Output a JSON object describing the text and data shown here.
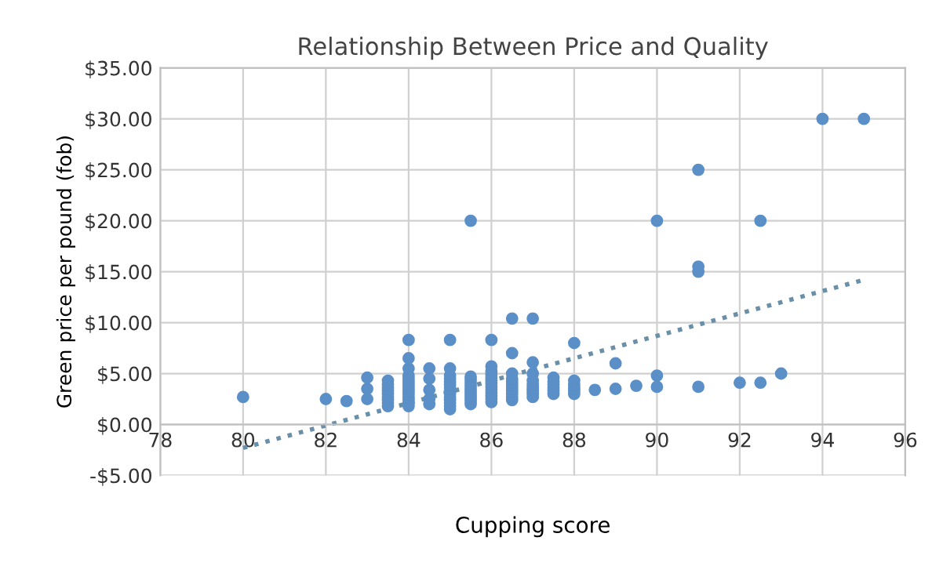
{
  "chart_data": {
    "type": "scatter",
    "title": "Relationship Between Price and Quality",
    "xlabel": "Cupping score",
    "ylabel": "Green price per pound (fob)",
    "series": [
      {
        "color": "#5b8fc7",
        "marker": "circle",
        "x": [
          80,
          82,
          82.5,
          83,
          83,
          83,
          83.5,
          83.5,
          83.5,
          83.5,
          83.5,
          83.5,
          83.5,
          83.5,
          83.5,
          84,
          84,
          84,
          84,
          84,
          84,
          84,
          84,
          84,
          84,
          84,
          84,
          84,
          84,
          84.5,
          84.5,
          84.5,
          84.5,
          84.5,
          85,
          85,
          85,
          85,
          85,
          85,
          85,
          85,
          85,
          85,
          85,
          85,
          85,
          85,
          85.5,
          85.5,
          85.5,
          85.5,
          85.5,
          85.5,
          85.5,
          85.5,
          85.5,
          85.5,
          85.5,
          86,
          86,
          86,
          86,
          86,
          86,
          86,
          86,
          86,
          86,
          86,
          86,
          86,
          86.5,
          86.5,
          86.5,
          86.5,
          86.5,
          86.5,
          86.5,
          86.5,
          86.5,
          86.5,
          86.5,
          87,
          87,
          87,
          87,
          87,
          87,
          87,
          87,
          87,
          87.5,
          87.5,
          87.5,
          87.5,
          87.5,
          87.5,
          88,
          88,
          88,
          88,
          88,
          88,
          88.5,
          89,
          89,
          89.5,
          90,
          90,
          90,
          91,
          91,
          91,
          91,
          92,
          92.5,
          92.5,
          93,
          94,
          95
        ],
        "values": [
          2.7,
          2.5,
          2.3,
          2.5,
          3.5,
          4.6,
          1.8,
          2.1,
          2.4,
          2.7,
          3.0,
          3.3,
          3.6,
          3.9,
          4.3,
          1.8,
          2.1,
          2.4,
          2.7,
          3.0,
          3.3,
          3.6,
          3.9,
          4.2,
          4.5,
          4.8,
          5.5,
          6.5,
          8.3,
          2.0,
          2.5,
          3.4,
          4.5,
          5.5,
          1.5,
          1.8,
          2.1,
          2.4,
          2.7,
          3.0,
          3.3,
          3.6,
          3.9,
          4.2,
          4.5,
          4.8,
          5.5,
          8.3,
          2.0,
          2.3,
          2.6,
          2.9,
          3.2,
          3.5,
          3.8,
          4.1,
          4.4,
          4.7,
          20,
          2.2,
          2.5,
          2.8,
          3.1,
          3.4,
          3.7,
          4.0,
          4.3,
          4.6,
          4.9,
          5.2,
          5.7,
          8.3,
          2.4,
          2.7,
          3.0,
          3.3,
          3.6,
          3.9,
          4.2,
          4.5,
          5.0,
          7.0,
          10.4,
          2.7,
          3.0,
          3.3,
          3.6,
          3.9,
          4.3,
          5.0,
          6.1,
          10.4,
          3.0,
          3.3,
          3.6,
          3.9,
          4.2,
          4.6,
          3.0,
          3.3,
          3.6,
          3.9,
          4.3,
          8.0,
          3.4,
          3.5,
          6.0,
          3.8,
          3.7,
          4.8,
          20,
          3.7,
          15,
          25,
          15.5,
          4.1,
          4.1,
          20,
          5.0,
          30,
          30
        ]
      },
      {
        "type": "line",
        "color": "#6a8fa8",
        "line_style": "dotted",
        "x": [
          80,
          95
        ],
        "values": [
          -2.3,
          14.2
        ]
      }
    ],
    "xlim": [
      78,
      96
    ],
    "xticks": [
      78,
      80,
      82,
      84,
      86,
      88,
      90,
      92,
      94,
      96
    ],
    "ylim": [
      -5,
      35
    ],
    "yticks": [
      {
        "value": -5,
        "label": "-$5.00"
      },
      {
        "value": 0,
        "label": "$0.00"
      },
      {
        "value": 5,
        "label": "$5.00"
      },
      {
        "value": 10,
        "label": "$10.00"
      },
      {
        "value": 15,
        "label": "$15.00"
      },
      {
        "value": 20,
        "label": "$20.00"
      },
      {
        "value": 25,
        "label": "$25.00"
      },
      {
        "value": 30,
        "label": "$30.00"
      },
      {
        "value": 35,
        "label": "$35.00"
      }
    ],
    "grid": true
  }
}
